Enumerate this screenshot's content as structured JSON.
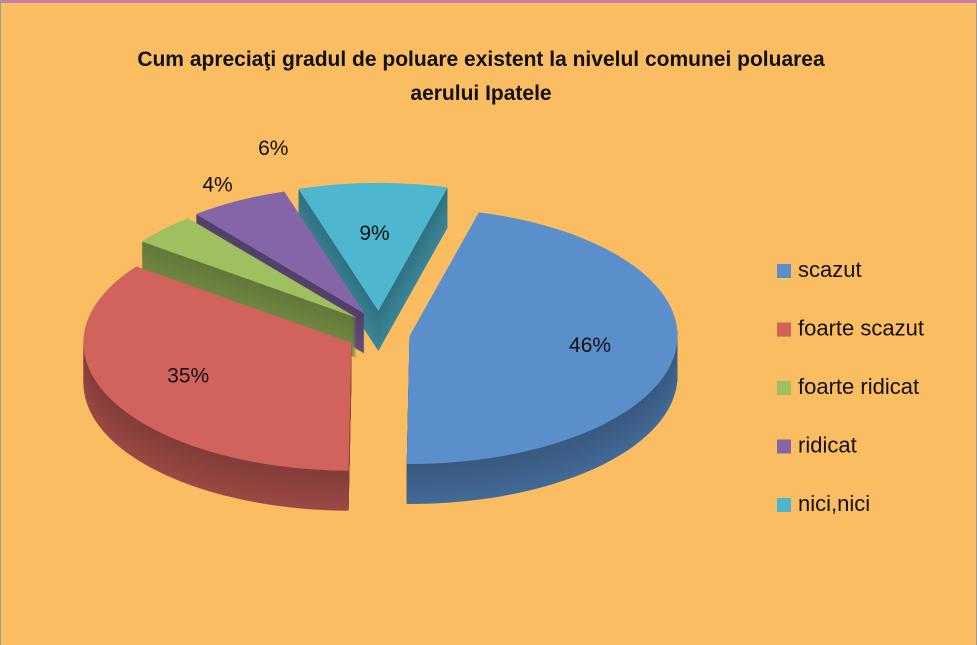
{
  "chart_data": {
    "type": "pie3d",
    "title": "Cum apreciaţi gradul de poluare existent la nivelul comunei poluarea aerului Ipatele",
    "categories": [
      "scazut",
      "foarte scazut",
      "foarte ridicat",
      "ridicat",
      "nici,nici"
    ],
    "values": [
      46,
      35,
      4,
      6,
      9
    ],
    "value_labels": [
      "46%",
      "35%",
      "4%",
      "6%",
      "9%"
    ],
    "colors": [
      "#5b8fcc",
      "#d2625c",
      "#9fc05e",
      "#8466a8",
      "#4fb6cf"
    ],
    "legend": "right"
  }
}
